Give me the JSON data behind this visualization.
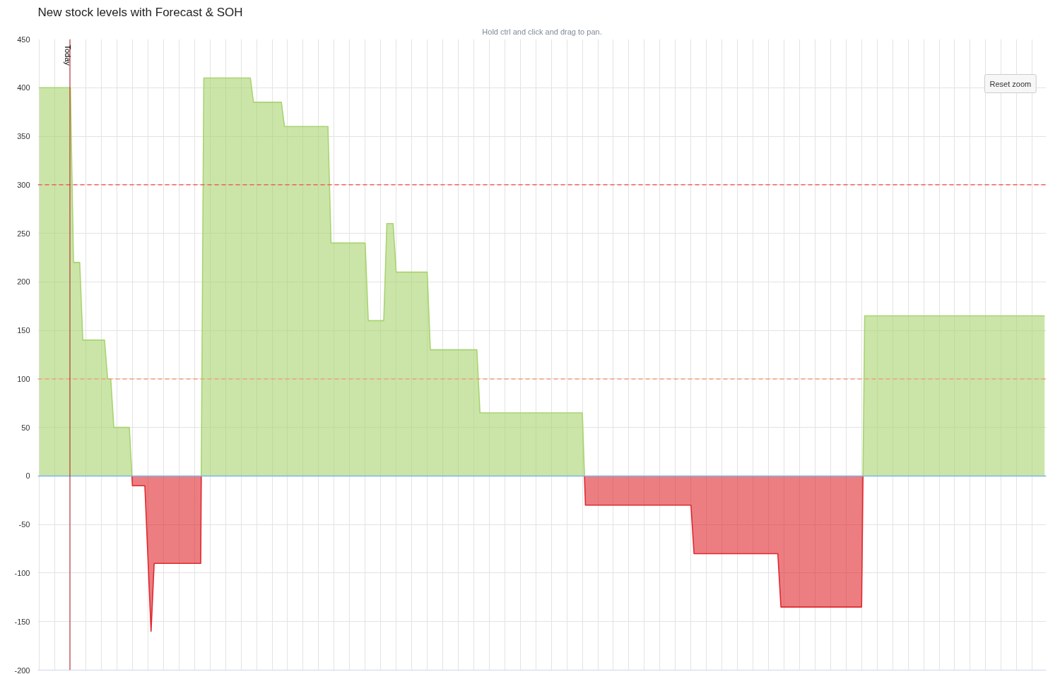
{
  "chart_data": {
    "type": "area",
    "title": "New stock levels with Forecast & SOH",
    "subtitle": "Hold ctrl and click and drag to pan.",
    "annotations": [
      "Today",
      "Reset zoom"
    ],
    "categories": [
      null,
      null,
      null,
      null,
      null,
      null,
      null,
      null,
      null,
      null,
      null,
      null,
      null,
      null,
      null,
      null,
      null,
      null,
      null,
      null,
      null,
      null,
      null,
      null,
      null,
      null,
      null,
      null,
      null,
      null,
      null,
      null,
      null,
      null,
      null,
      null,
      null,
      null,
      null,
      null,
      null,
      null,
      null,
      null,
      null,
      null,
      null,
      null,
      null,
      null,
      null,
      null,
      null,
      null,
      null,
      null,
      null,
      null,
      null,
      null,
      null,
      null,
      null,
      null,
      null,
      null,
      null,
      null,
      null,
      null,
      null,
      null,
      null,
      null,
      null,
      null,
      null,
      null,
      null,
      null,
      null,
      null,
      null,
      null,
      null,
      null,
      null,
      null,
      null,
      null,
      null,
      null,
      null,
      null,
      null,
      null,
      null,
      null,
      null,
      null,
      null,
      null,
      null,
      null,
      null,
      null,
      null,
      null,
      null,
      null,
      null,
      null,
      null,
      null,
      null,
      null,
      null,
      null,
      null,
      null,
      null,
      null,
      null,
      null,
      null,
      null,
      null,
      null,
      null,
      null,
      null,
      null,
      null,
      null,
      null,
      null,
      null,
      null,
      null,
      null,
      null,
      null,
      null,
      null,
      null,
      null,
      null,
      null,
      null,
      null,
      null,
      null,
      null,
      null,
      null,
      null,
      null,
      null,
      null,
      null,
      null,
      null,
      null,
      null,
      null,
      null,
      null,
      null,
      null,
      null,
      null,
      null,
      null,
      null,
      null,
      null,
      null,
      null,
      null,
      null,
      null,
      null,
      null,
      null,
      null,
      null,
      null,
      null,
      null,
      null,
      null,
      null,
      null,
      null,
      null,
      null,
      null,
      null,
      null,
      null,
      null,
      null,
      null,
      null,
      null,
      null,
      null,
      null,
      null,
      null,
      null,
      null,
      null,
      null,
      null,
      null,
      null,
      null,
      null,
      null,
      null,
      null,
      null,
      null,
      null,
      null,
      null,
      null,
      null,
      null,
      null,
      null,
      null,
      null,
      null,
      null,
      null,
      null,
      null,
      null,
      null,
      null,
      null,
      null,
      null,
      null,
      null,
      null,
      null,
      null,
      null,
      null,
      null,
      null,
      null,
      null,
      null,
      null,
      null,
      null,
      null,
      null,
      null,
      null,
      null,
      null,
      null,
      null,
      null,
      null,
      null,
      null,
      null,
      null,
      null,
      null,
      null,
      null,
      null,
      null,
      null,
      null,
      null,
      null,
      null,
      null,
      null,
      null,
      null,
      null,
      null,
      null,
      null,
      null,
      null,
      null,
      null,
      null,
      null,
      null,
      null,
      null,
      null,
      null,
      null,
      null,
      null,
      null,
      null,
      null,
      null,
      null,
      null,
      null,
      null,
      null,
      null,
      null,
      null,
      null,
      null,
      null,
      null,
      null,
      null
    ],
    "series": [
      {
        "color": "#a8d46f",
        "values": [
          400,
          400,
          400,
          400,
          400,
          400,
          400,
          400,
          400,
          400,
          400,
          220,
          220,
          220,
          140,
          140,
          140,
          140,
          140,
          140,
          140,
          140,
          100,
          100,
          50,
          50,
          50,
          50,
          50,
          50,
          null,
          null,
          null,
          null,
          null,
          null,
          null,
          null,
          null,
          null,
          null,
          null,
          null,
          null,
          null,
          null,
          null,
          null,
          null,
          null,
          null,
          null,
          null,
          410,
          410,
          410,
          410,
          410,
          410,
          410,
          410,
          410,
          410,
          410,
          410,
          410,
          410,
          410,
          410,
          385,
          385,
          385,
          385,
          385,
          385,
          385,
          385,
          385,
          385,
          360,
          360,
          360,
          360,
          360,
          360,
          360,
          360,
          360,
          360,
          360,
          360,
          360,
          360,
          360,
          240,
          240,
          240,
          240,
          240,
          240,
          240,
          240,
          240,
          240,
          240,
          240,
          160,
          160,
          160,
          160,
          160,
          160,
          260,
          260,
          260,
          210,
          210,
          210,
          210,
          210,
          210,
          210,
          210,
          210,
          210,
          210,
          130,
          130,
          130,
          130,
          130,
          130,
          130,
          130,
          130,
          130,
          130,
          130,
          130,
          130,
          130,
          130,
          65,
          65,
          65,
          65,
          65,
          65,
          65,
          65,
          65,
          65,
          65,
          65,
          65,
          65,
          65,
          65,
          65,
          65,
          65,
          65,
          65,
          65,
          65,
          65,
          65,
          65,
          65,
          65,
          65,
          65,
          65,
          65,
          65,
          65,
          null,
          null,
          null,
          null,
          null,
          null,
          null,
          null,
          null,
          null,
          null,
          null,
          null,
          null,
          null,
          null,
          null,
          null,
          null,
          null,
          null,
          null,
          null,
          null,
          null,
          null,
          null,
          null,
          null,
          null,
          null,
          null,
          null,
          null,
          null,
          null,
          null,
          null,
          null,
          null,
          null,
          null,
          null,
          null,
          null,
          null,
          null,
          null,
          null,
          null,
          null,
          null,
          null,
          null,
          null,
          null,
          null,
          null,
          null,
          null,
          null,
          null,
          null,
          null,
          null,
          null,
          null,
          null,
          null,
          null,
          null,
          null,
          null,
          null,
          null,
          null,
          null,
          null,
          null,
          null,
          null,
          null,
          null,
          null,
          null,
          null,
          null,
          null,
          null,
          null,
          165,
          165,
          165,
          165,
          165,
          165,
          165,
          165,
          165,
          165,
          165,
          165,
          165,
          165,
          165,
          165,
          165,
          165,
          165,
          165,
          165,
          165,
          165,
          165,
          165,
          165,
          165,
          165,
          165,
          165,
          165,
          165,
          165,
          165,
          165,
          165,
          165,
          165,
          165,
          165,
          165,
          165,
          165,
          165,
          165,
          165,
          165,
          165,
          165,
          165,
          165,
          165,
          165,
          165,
          165,
          165,
          165,
          165,
          165
        ]
      },
      {
        "color": "#e0282e",
        "values": [
          null,
          null,
          null,
          null,
          null,
          null,
          null,
          null,
          null,
          null,
          null,
          null,
          null,
          null,
          null,
          null,
          null,
          null,
          null,
          null,
          null,
          null,
          null,
          null,
          null,
          null,
          null,
          null,
          null,
          null,
          -10,
          -10,
          -10,
          -10,
          -10,
          -85,
          -160,
          -90,
          -90,
          -90,
          -90,
          -90,
          -90,
          -90,
          -90,
          -90,
          -90,
          -90,
          -90,
          -90,
          -90,
          -90,
          -90,
          null,
          null,
          null,
          null,
          null,
          null,
          null,
          null,
          null,
          null,
          null,
          null,
          null,
          null,
          null,
          null,
          null,
          null,
          null,
          null,
          null,
          null,
          null,
          null,
          null,
          null,
          null,
          null,
          null,
          null,
          null,
          null,
          null,
          null,
          null,
          null,
          null,
          null,
          null,
          null,
          null,
          null,
          null,
          null,
          null,
          null,
          null,
          null,
          null,
          null,
          null,
          null,
          null,
          null,
          null,
          null,
          null,
          null,
          null,
          null,
          null,
          null,
          null,
          null,
          null,
          null,
          null,
          null,
          null,
          null,
          null,
          null,
          null,
          null,
          null,
          null,
          null,
          null,
          null,
          null,
          null,
          null,
          null,
          null,
          null,
          null,
          null,
          null,
          null,
          null,
          null,
          null,
          null,
          null,
          null,
          null,
          null,
          null,
          null,
          null,
          null,
          null,
          null,
          null,
          null,
          null,
          null,
          null,
          null,
          null,
          null,
          null,
          null,
          null,
          null,
          null,
          null,
          null,
          null,
          null,
          null,
          null,
          null,
          -30,
          -30,
          -30,
          -30,
          -30,
          -30,
          -30,
          -30,
          -30,
          -30,
          -30,
          -30,
          -30,
          -30,
          -30,
          -30,
          -30,
          -30,
          -30,
          -30,
          -30,
          -30,
          -30,
          -30,
          -30,
          -30,
          -30,
          -30,
          -30,
          -30,
          -30,
          -30,
          -30,
          -30,
          -30,
          -80,
          -80,
          -80,
          -80,
          -80,
          -80,
          -80,
          -80,
          -80,
          -80,
          -80,
          -80,
          -80,
          -80,
          -80,
          -80,
          -80,
          -80,
          -80,
          -80,
          -80,
          -80,
          -80,
          -80,
          -80,
          -80,
          -80,
          -80,
          -135,
          -135,
          -135,
          -135,
          -135,
          -135,
          -135,
          -135,
          -135,
          -135,
          -135,
          -135,
          -135,
          -135,
          -135,
          -135,
          -135,
          -135,
          -135,
          -135,
          -135,
          -135,
          -135,
          -135,
          -135,
          -135,
          -135,
          null,
          null,
          null,
          null,
          null,
          null,
          null,
          null,
          null,
          null,
          null,
          null,
          null,
          null,
          null,
          null,
          null,
          null,
          null,
          null,
          null,
          null,
          null,
          null,
          null,
          null,
          null,
          null,
          null,
          null,
          null,
          null,
          null,
          null,
          null,
          null,
          null,
          null,
          null,
          null,
          null,
          null,
          null,
          null,
          null,
          null,
          null,
          null,
          null,
          null,
          null,
          null,
          null,
          null,
          null,
          null,
          null,
          null,
          null
        ]
      }
    ],
    "ref_lines": [
      {
        "axis": "y",
        "value": 300,
        "color": "#f0605a",
        "line_style": "dashed"
      },
      {
        "axis": "y",
        "value": 100,
        "color": "#f2a07a",
        "line_style": "dashed"
      },
      {
        "axis": "y",
        "value": 0,
        "color": "#7cb5ec",
        "line_style": "solid"
      }
    ],
    "ylim": [
      -200,
      450
    ],
    "yticks": [
      -200,
      -150,
      -100,
      -50,
      0,
      50,
      100,
      150,
      200,
      250,
      300,
      350,
      400,
      450
    ],
    "grid": true,
    "tick_labels": "y"
  }
}
